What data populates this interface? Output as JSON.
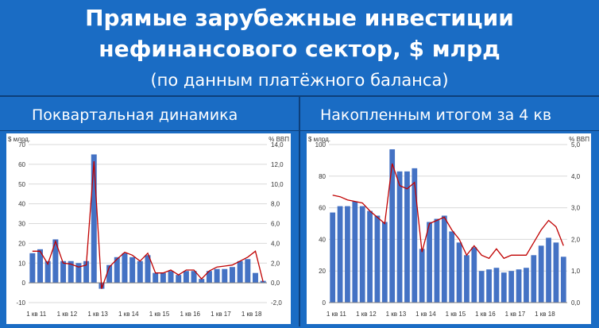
{
  "title": {
    "line1": "Прямые зарубежные инвестиции",
    "line2": "нефинансового сектор, $ млрд",
    "line3": "(по данным платёжного баланса)"
  },
  "colors": {
    "background": "#1a6cc4",
    "bars": "#4472c4",
    "line": "#c00000",
    "divider": "#0d3f7a"
  },
  "chart_data": [
    {
      "type": "bar",
      "title": "Поквартальная динамика",
      "ylabel": "$ млрд.",
      "y2label": "% ВВП",
      "ylim": [
        -10,
        70
      ],
      "y2lim": [
        -2,
        14
      ],
      "yticks": [
        "-10",
        "0",
        "10",
        "20",
        "30",
        "40",
        "50",
        "60",
        "70"
      ],
      "y2ticks": [
        "-2,0",
        "0,0",
        "2,0",
        "4,0",
        "6,0",
        "8,0",
        "10,0",
        "12,0",
        "14,0"
      ],
      "x_tick_labels": [
        "1 кв 11",
        "1 кв 12",
        "1 кв 13",
        "1 кв 14",
        "1 кв 15",
        "1 кв 16",
        "1 кв 17",
        "1 кв 18"
      ],
      "grid": true,
      "series": [
        {
          "kind": "bar",
          "axis": "left",
          "values": [
            15,
            17,
            11,
            22,
            11,
            11,
            10,
            11,
            65,
            -3,
            9,
            13,
            15,
            13,
            11,
            14,
            5,
            5,
            6,
            4,
            6,
            6,
            2,
            6,
            7,
            7,
            8,
            11,
            12,
            5,
            1
          ]
        },
        {
          "kind": "line",
          "axis": "right",
          "values": [
            3.2,
            3.2,
            1.9,
            4.2,
            2.0,
            1.9,
            1.6,
            1.8,
            12.3,
            -0.6,
            1.6,
            2.4,
            3.1,
            2.8,
            2.2,
            3.0,
            1.0,
            1.0,
            1.3,
            0.8,
            1.3,
            1.3,
            0.4,
            1.2,
            1.6,
            1.7,
            1.8,
            2.2,
            2.6,
            3.2,
            0.1
          ]
        }
      ]
    },
    {
      "type": "bar",
      "title": "Накопленным итогом за 4 кв",
      "ylabel": "$ млрд.",
      "y2label": "% ВВП",
      "ylim": [
        0,
        100
      ],
      "y2lim": [
        0,
        5
      ],
      "yticks": [
        "0",
        "20",
        "40",
        "60",
        "80",
        "100"
      ],
      "y2ticks": [
        "0,0",
        "1,0",
        "2,0",
        "3,0",
        "4,0",
        "5,0"
      ],
      "x_tick_labels": [
        "1 кв 11",
        "1 кв 12",
        "1 кв 13",
        "1 кв 14",
        "1 кв 15",
        "1 кв 16",
        "1 кв 17",
        "1 кв 18"
      ],
      "grid": true,
      "series": [
        {
          "kind": "bar",
          "axis": "left",
          "values": [
            57,
            61,
            61,
            64,
            61,
            58,
            55,
            51,
            97,
            83,
            83,
            85,
            34,
            51,
            53,
            55,
            45,
            38,
            30,
            35,
            20,
            21,
            22,
            19,
            20,
            21,
            22,
            30,
            36,
            41,
            38,
            29
          ]
        },
        {
          "kind": "line",
          "axis": "right",
          "values": [
            3.4,
            3.35,
            3.25,
            3.2,
            3.15,
            2.9,
            2.7,
            2.5,
            4.4,
            3.7,
            3.6,
            3.8,
            1.6,
            2.5,
            2.6,
            2.7,
            2.3,
            2.0,
            1.5,
            1.8,
            1.5,
            1.4,
            1.7,
            1.4,
            1.5,
            1.5,
            1.5,
            1.9,
            2.3,
            2.6,
            2.4,
            1.8
          ]
        }
      ]
    }
  ]
}
